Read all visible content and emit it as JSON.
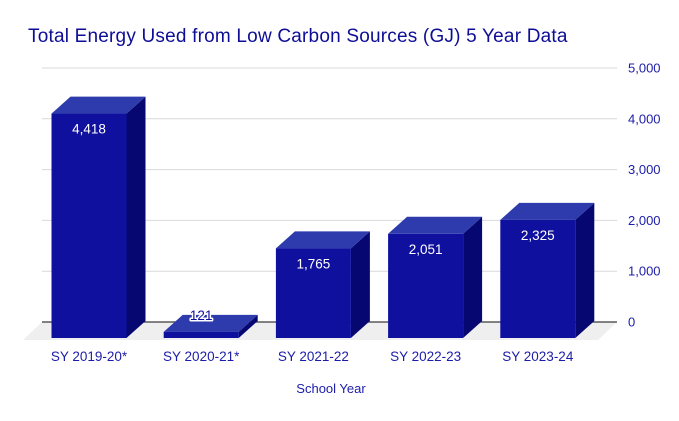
{
  "title": "Total Energy Used from Low Carbon Sources (GJ) 5 Year Data",
  "chart_data": {
    "type": "bar",
    "style": "3d-column",
    "title": "Total Energy Used from Low Carbon Sources (GJ) 5 Year Data",
    "categories": [
      "SY 2019-20*",
      "SY 2020-21*",
      "SY 2021-22",
      "SY 2022-23",
      "SY 2023-24"
    ],
    "values": [
      4418,
      121,
      1765,
      2051,
      2325
    ],
    "value_labels": [
      "4,418",
      "121",
      "1,765",
      "2,051",
      "2,325"
    ],
    "xlabel": "School Year",
    "ylabel": "",
    "ylim": [
      0,
      5000
    ],
    "yticks": [
      0,
      1000,
      2000,
      3000,
      4000,
      5000
    ],
    "ytick_labels": [
      "0",
      "1,000",
      "2,000",
      "3,000",
      "4,000",
      "5,000"
    ],
    "ytick_side": "right",
    "grid": true,
    "legend": "none",
    "colors": {
      "bar_front": "#10109e",
      "bar_top": "#2d3bac",
      "bar_side": "#070771",
      "title_text": "#0d0d96",
      "axis_text": "#1c1caa",
      "gridline": "#d9d9d9",
      "zero_line": "#3a3a3a",
      "floor": "#efefef",
      "bar_label_inside": "#ffffff",
      "bar_label_outside": "#10109e",
      "background": "#ffffff"
    }
  }
}
